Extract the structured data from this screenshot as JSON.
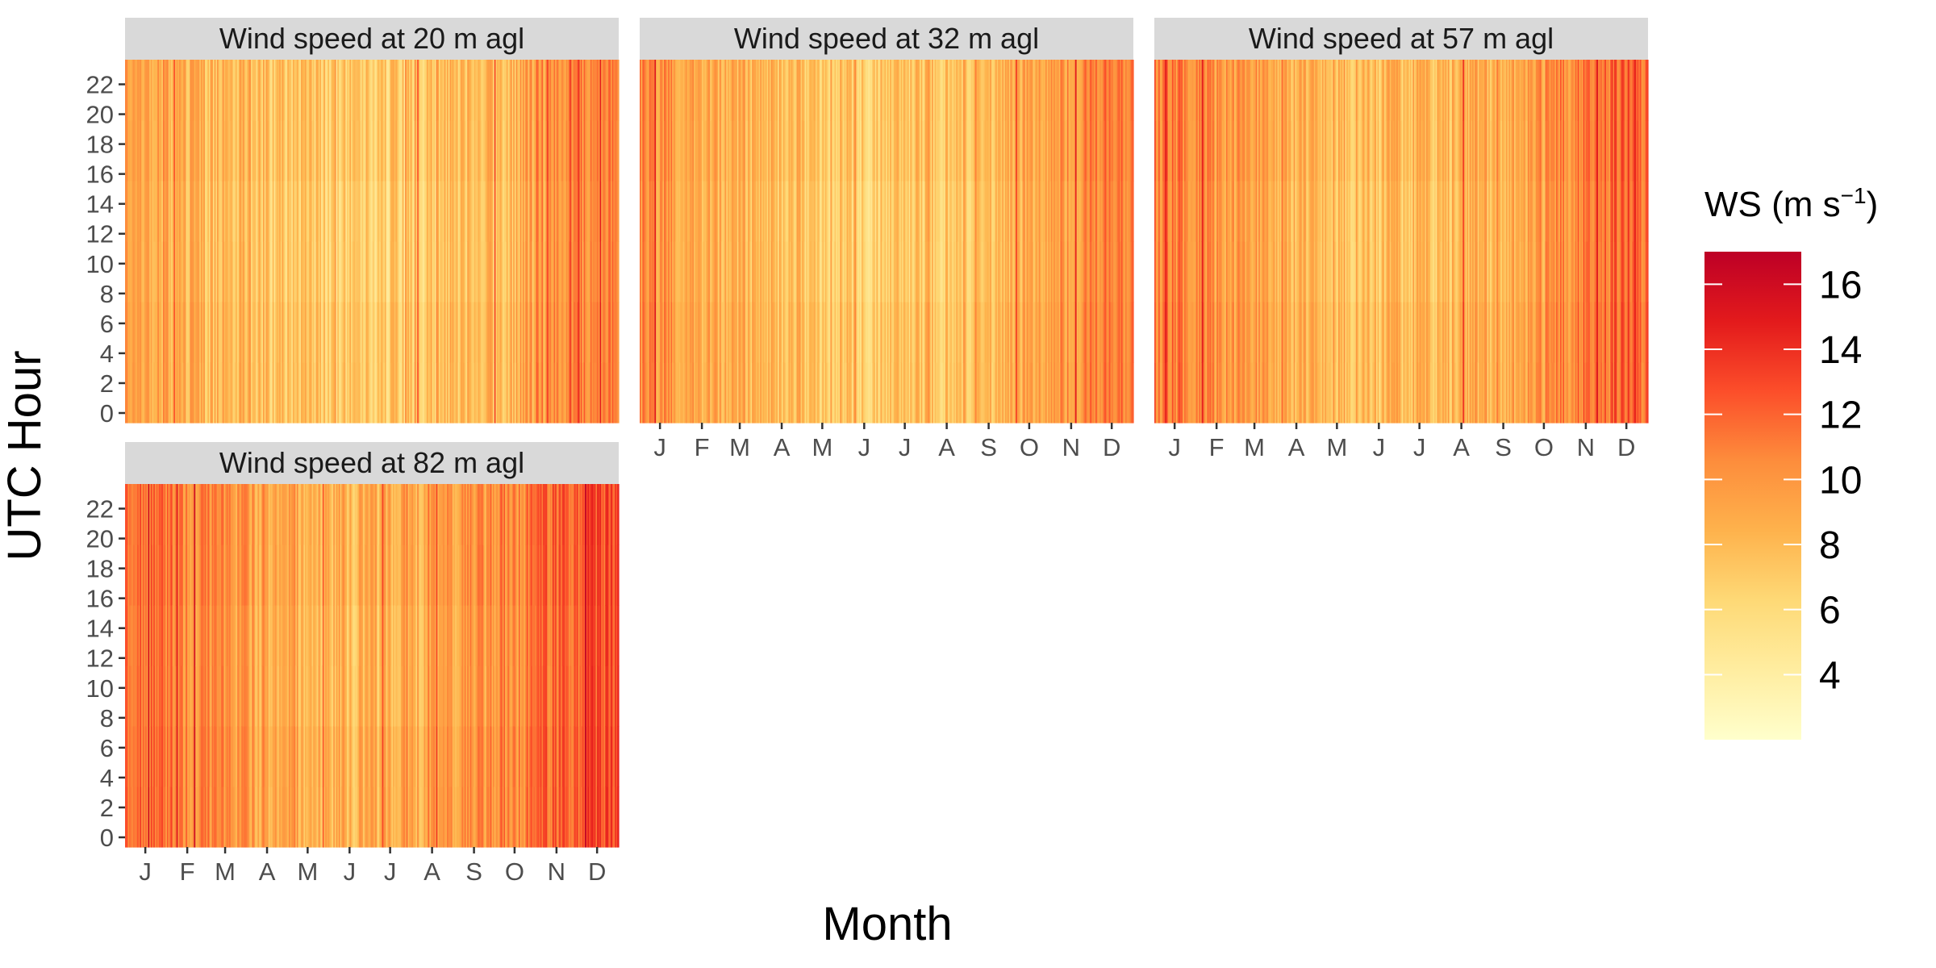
{
  "chart_data": {
    "type": "heatmap",
    "facets": [
      {
        "title": "Wind speed at 20 m agl",
        "height_m": 20
      },
      {
        "title": "Wind speed at 32 m agl",
        "height_m": 32
      },
      {
        "title": "Wind speed at 57 m agl",
        "height_m": 57
      },
      {
        "title": "Wind speed at 82 m agl",
        "height_m": 82
      }
    ],
    "xlabel": "Month",
    "ylabel": "UTC Hour",
    "x_ticks": [
      "J",
      "F",
      "M",
      "A",
      "M",
      "J",
      "J",
      "A",
      "S",
      "O",
      "N",
      "D"
    ],
    "y_ticks": [
      0,
      2,
      4,
      6,
      8,
      10,
      12,
      14,
      16,
      18,
      20,
      22
    ],
    "x_range": [
      1,
      365
    ],
    "y_range": [
      0,
      23
    ],
    "legend": {
      "title_main": "WS (m s",
      "title_sup": "−1",
      "title_close": ")",
      "ticks": [
        4,
        6,
        8,
        10,
        12,
        14,
        16
      ],
      "range": [
        2,
        17
      ],
      "position": "right"
    },
    "colormap": [
      "#ffffcc",
      "#ffeda0",
      "#fed976",
      "#feb24c",
      "#fd8d3c",
      "#fc4e2a",
      "#e31a1c",
      "#bd0026"
    ],
    "approx_mean_wind_speed_by_month": [
      9.5,
      8.5,
      8.0,
      7.5,
      7.2,
      6.8,
      7.0,
      7.3,
      7.8,
      8.5,
      9.8,
      10.5
    ]
  }
}
